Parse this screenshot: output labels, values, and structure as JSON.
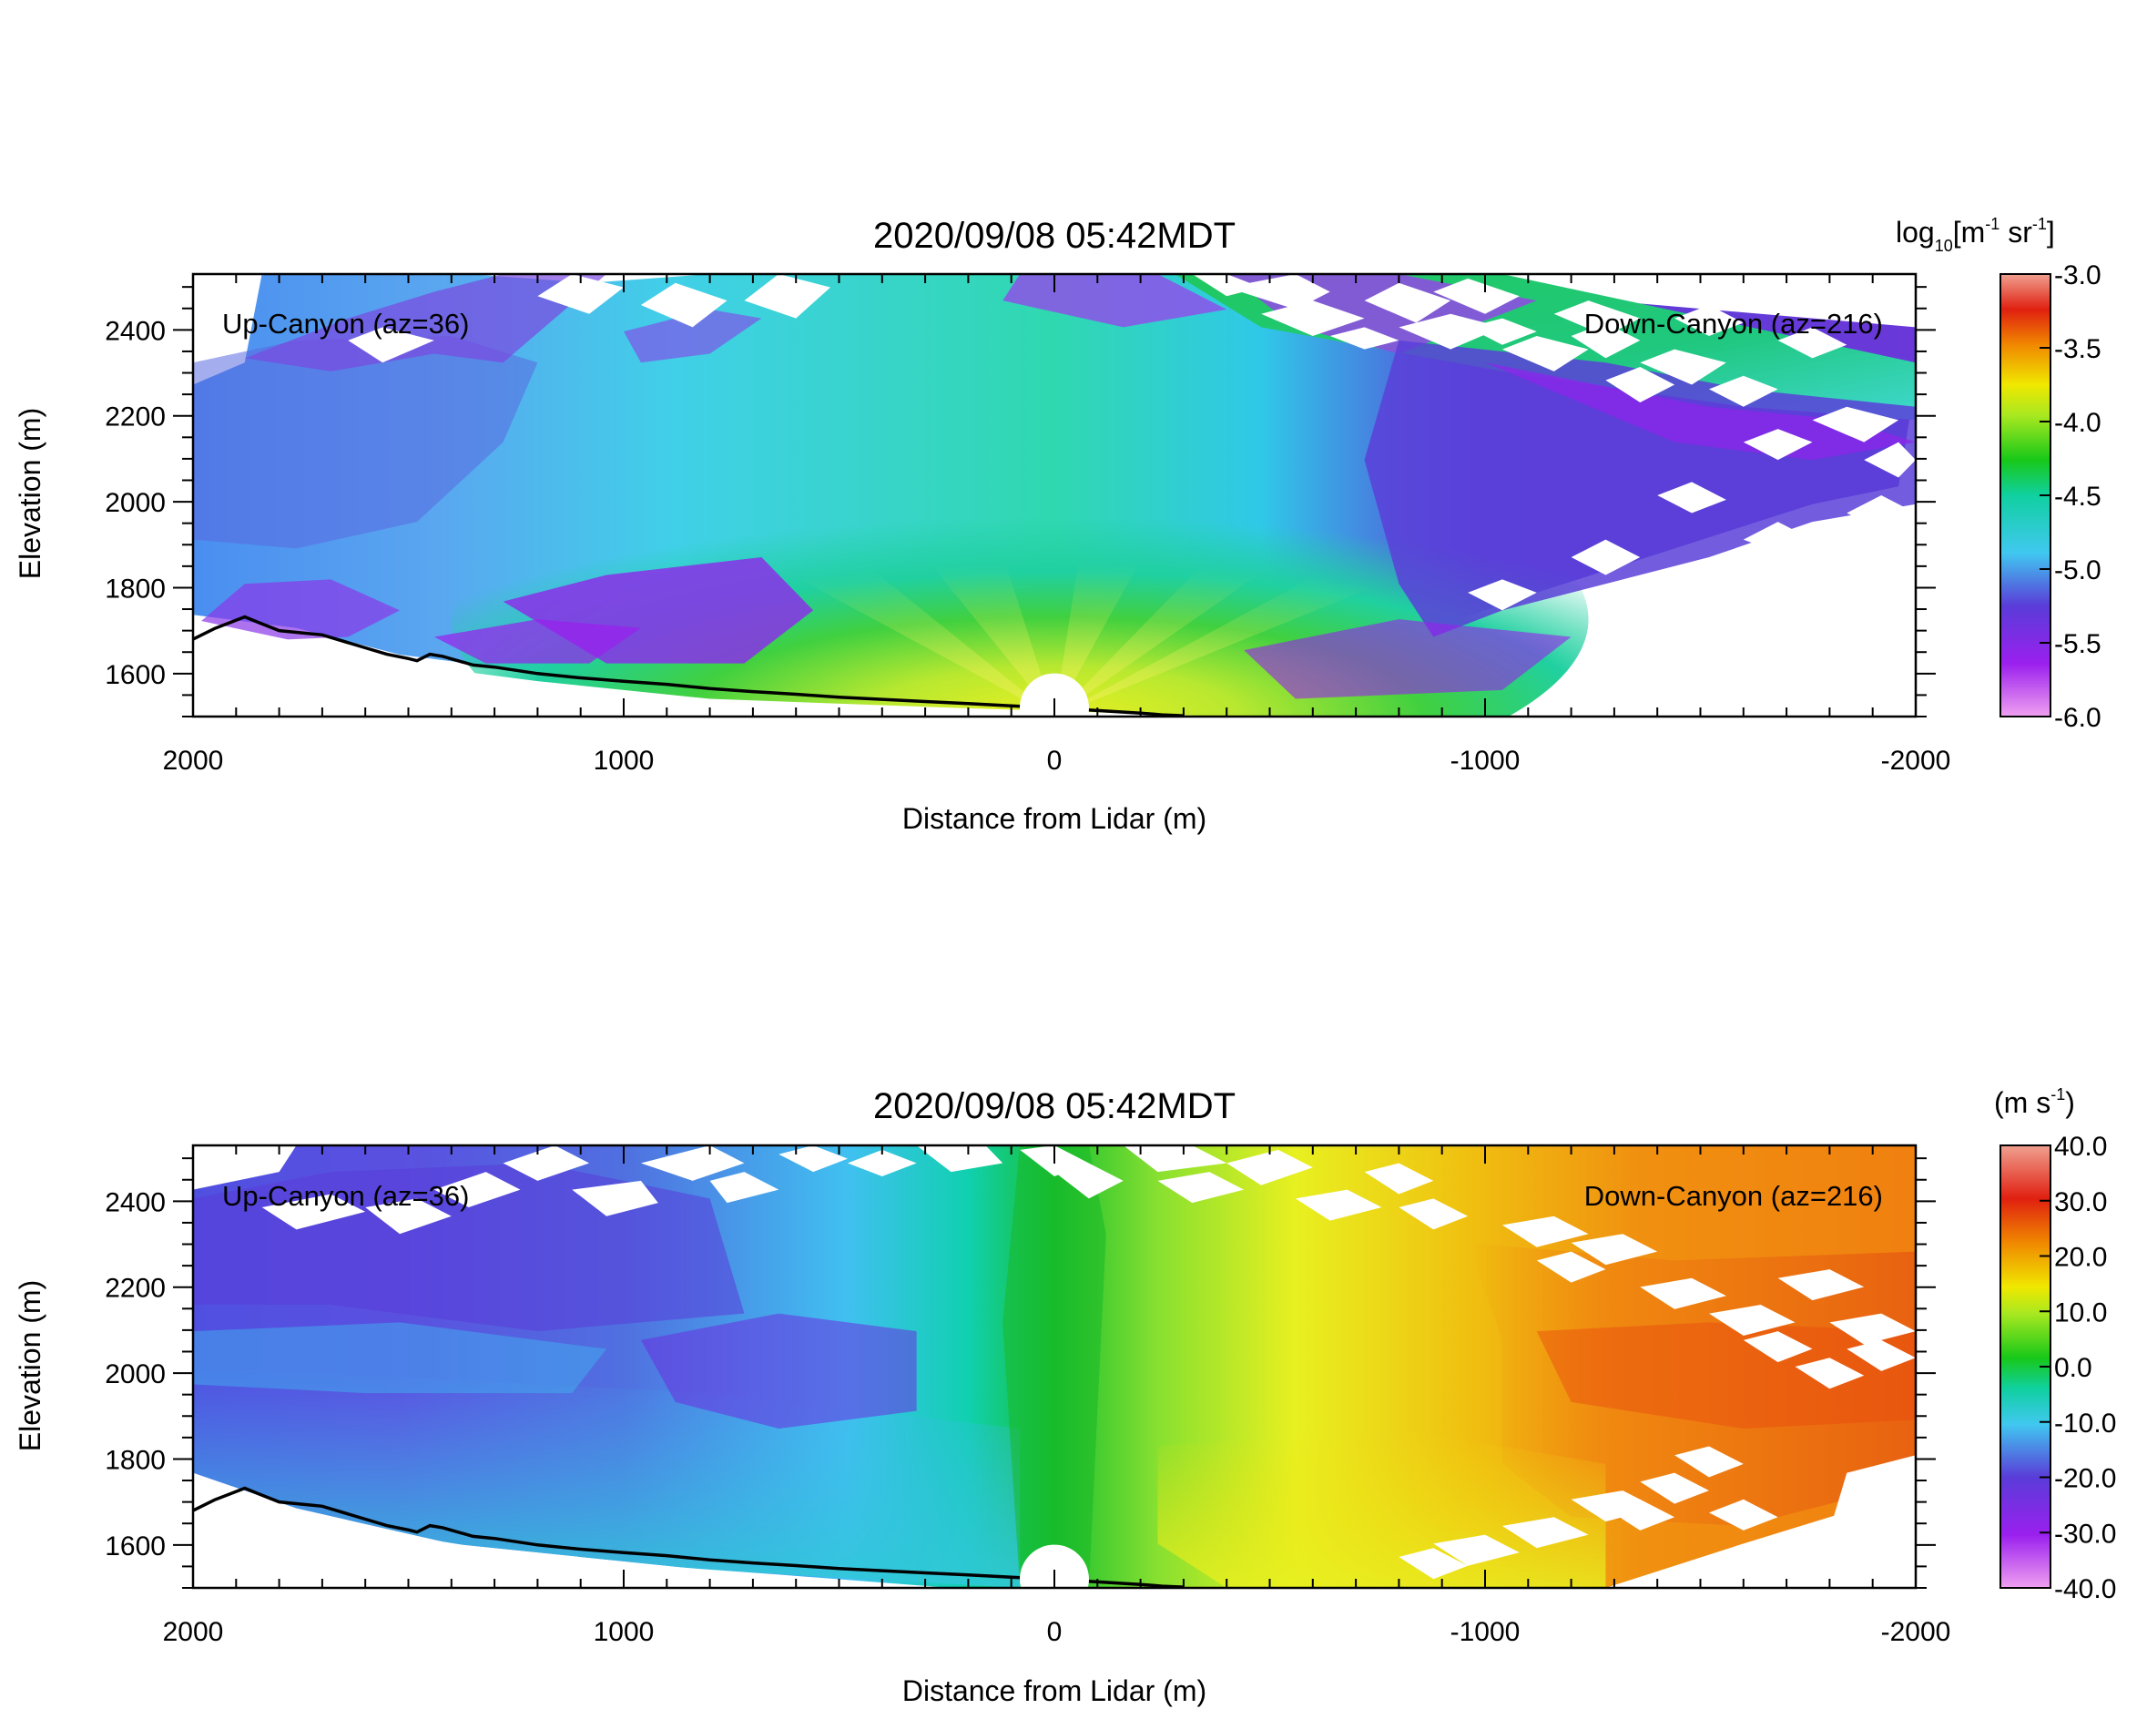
{
  "chart_data": [
    {
      "type": "heatmap",
      "title": "2020/09/08 05:42MDT",
      "xlabel": "Distance from Lidar (m)",
      "ylabel": "Elevation (m)",
      "xlim": [
        2000,
        -2000
      ],
      "ylim": [
        1500,
        2530
      ],
      "x_ticks": [
        2000,
        1000,
        0,
        -1000,
        -2000
      ],
      "x_tick_labels": [
        "2000",
        "1000",
        "0",
        "-1000",
        "-2000"
      ],
      "y_ticks": [
        1600,
        1800,
        2000,
        2200,
        2400
      ],
      "y_tick_labels": [
        "1600",
        "1800",
        "2000",
        "2200",
        "2400"
      ],
      "annotations": [
        "Up-Canyon (az=36)",
        "Down-Canyon (az=216)"
      ],
      "colorbar": {
        "label_base": "log",
        "label_sub": "10",
        "label_rest": "[m",
        "label_sup1": "-1",
        "label_mid": " sr",
        "label_sup2": "-1",
        "label_end": "]",
        "min": -6.0,
        "max": -3.0,
        "ticks": [
          "-3.0",
          "-3.5",
          "-4.0",
          "-4.5",
          "-5.0",
          "-5.5",
          "-6.0"
        ]
      },
      "terrain": [
        [
          2000,
          1680
        ],
        [
          1950,
          1705
        ],
        [
          1880,
          1732
        ],
        [
          1850,
          1720
        ],
        [
          1800,
          1700
        ],
        [
          1700,
          1690
        ],
        [
          1600,
          1660
        ],
        [
          1550,
          1645
        ],
        [
          1500,
          1635
        ],
        [
          1480,
          1630
        ],
        [
          1450,
          1645
        ],
        [
          1420,
          1640
        ],
        [
          1350,
          1620
        ],
        [
          1300,
          1615
        ],
        [
          1200,
          1600
        ],
        [
          1100,
          1590
        ],
        [
          1000,
          1582
        ],
        [
          900,
          1575
        ],
        [
          800,
          1565
        ],
        [
          700,
          1558
        ],
        [
          600,
          1552
        ],
        [
          500,
          1545
        ],
        [
          400,
          1540
        ],
        [
          300,
          1535
        ],
        [
          200,
          1530
        ],
        [
          100,
          1525
        ],
        [
          0,
          1520
        ],
        [
          -100,
          1514
        ],
        [
          -200,
          1508
        ],
        [
          -250,
          1504
        ],
        [
          -300,
          1502
        ]
      ]
    },
    {
      "type": "heatmap",
      "title": "2020/09/08 05:42MDT",
      "xlabel": "Distance from Lidar (m)",
      "ylabel": "Elevation (m)",
      "xlim": [
        2000,
        -2000
      ],
      "ylim": [
        1500,
        2530
      ],
      "x_ticks": [
        2000,
        1000,
        0,
        -1000,
        -2000
      ],
      "x_tick_labels": [
        "2000",
        "1000",
        "0",
        "-1000",
        "-2000"
      ],
      "y_ticks": [
        1600,
        1800,
        2000,
        2200,
        2400
      ],
      "y_tick_labels": [
        "1600",
        "1800",
        "2000",
        "2200",
        "2400"
      ],
      "annotations": [
        "Up-Canyon (az=36)",
        "Down-Canyon (az=216)"
      ],
      "colorbar": {
        "label_base": "(m s",
        "label_sup1": "-1",
        "label_end": ")",
        "min": -40.0,
        "max": 40.0,
        "ticks": [
          "40.0",
          "30.0",
          "20.0",
          "10.0",
          "0.0",
          "-10.0",
          "-20.0",
          "-30.0",
          "-40.0"
        ]
      },
      "terrain": [
        [
          2000,
          1680
        ],
        [
          1950,
          1705
        ],
        [
          1880,
          1732
        ],
        [
          1850,
          1720
        ],
        [
          1800,
          1700
        ],
        [
          1700,
          1690
        ],
        [
          1600,
          1660
        ],
        [
          1550,
          1645
        ],
        [
          1500,
          1635
        ],
        [
          1480,
          1630
        ],
        [
          1450,
          1645
        ],
        [
          1420,
          1640
        ],
        [
          1350,
          1620
        ],
        [
          1300,
          1615
        ],
        [
          1200,
          1600
        ],
        [
          1100,
          1590
        ],
        [
          1000,
          1582
        ],
        [
          900,
          1575
        ],
        [
          800,
          1565
        ],
        [
          700,
          1558
        ],
        [
          600,
          1552
        ],
        [
          500,
          1545
        ],
        [
          400,
          1540
        ],
        [
          300,
          1535
        ],
        [
          200,
          1530
        ],
        [
          100,
          1525
        ],
        [
          0,
          1520
        ],
        [
          -100,
          1514
        ],
        [
          -200,
          1508
        ],
        [
          -250,
          1504
        ],
        [
          -300,
          1502
        ]
      ]
    }
  ]
}
